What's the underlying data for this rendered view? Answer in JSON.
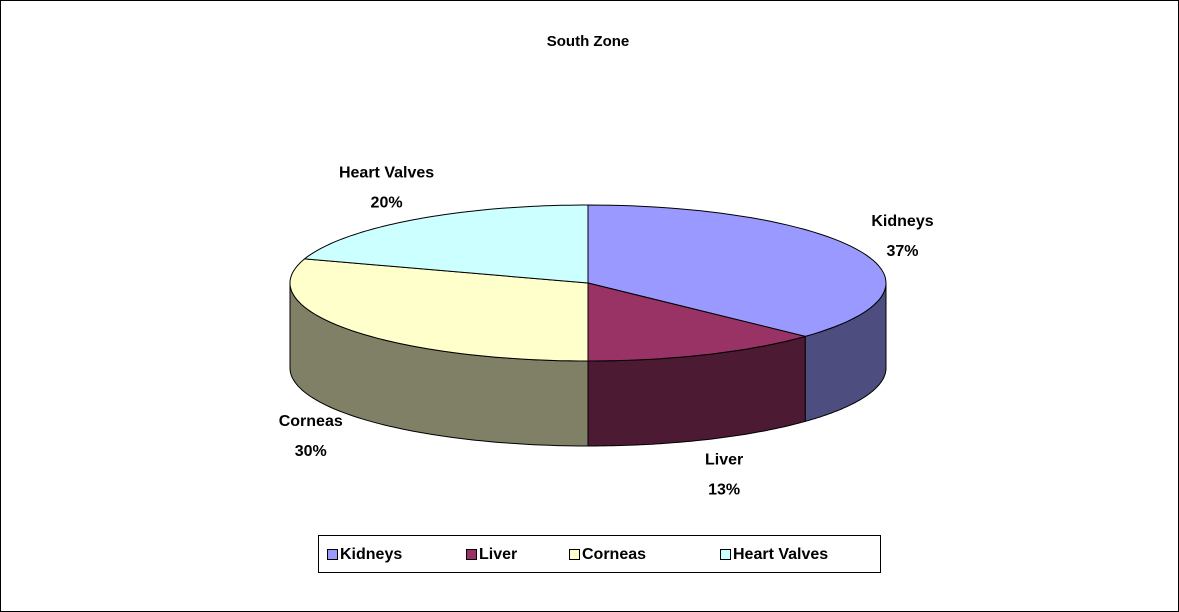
{
  "chart_data": {
    "type": "pie",
    "title": "South Zone",
    "categories": [
      "Kidneys",
      "Liver",
      "Corneas",
      "Heart Valves"
    ],
    "values": [
      37,
      13,
      30,
      20
    ],
    "value_labels": [
      "37%",
      "13%",
      "30%",
      "20%"
    ],
    "colors": [
      "#9999ff",
      "#993366",
      "#ffffcc",
      "#ccffff"
    ],
    "legend": "bottom"
  }
}
